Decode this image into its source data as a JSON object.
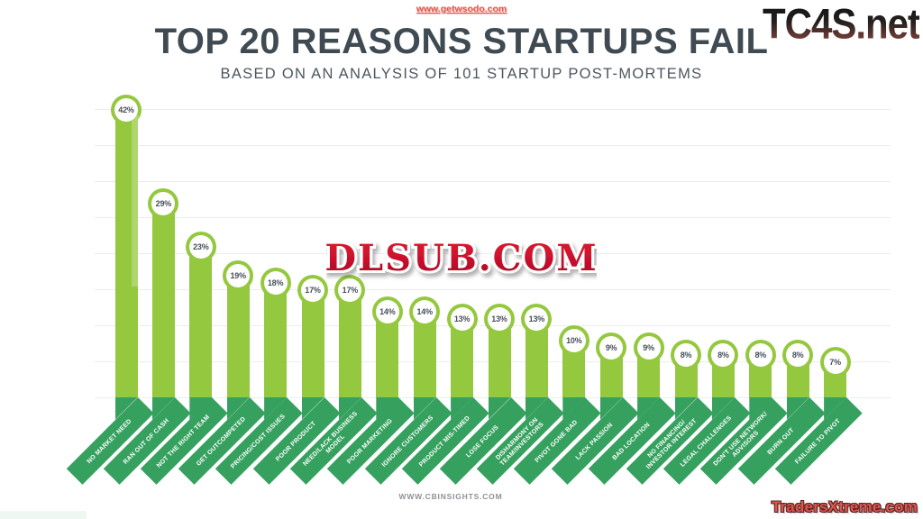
{
  "header": {
    "title": "TOP 20 REASONS STARTUPS FAIL",
    "subtitle": "BASED ON AN ANALYSIS OF 101 STARTUP POST-MORTEMS"
  },
  "footer": {
    "source": "WWW.CBINSIGHTS.COM"
  },
  "watermarks": {
    "top_center": "www.getwsodo.com",
    "top_right": "TC4S.net",
    "center_overlay": "DLSUB.COM",
    "bottom_right": "TradersXtreme.com"
  },
  "colors": {
    "bar_green": "#94c83e",
    "ribbon_green": "#36a15f",
    "title_gray": "#3f4a52",
    "gridline": "#ececec",
    "watermark_red": "#e2564f",
    "dlsub_red": "#c8102e"
  },
  "chart_data": {
    "type": "bar",
    "title": "TOP 20 REASONS STARTUPS FAIL",
    "subtitle": "BASED ON AN ANALYSIS OF 101 STARTUP POST-MORTEMS",
    "source": "WWW.CBINSIGHTS.COM",
    "unit": "%",
    "ylim": [
      0,
      45
    ],
    "gridline_step": 5,
    "grid": true,
    "legend": false,
    "categories": [
      "NO MARKET NEED",
      "RAN OUT OF CASH",
      "NOT THE RIGHT TEAM",
      "GET OUTCOMPETED",
      "PRICING/COST ISSUES",
      "POOR PRODUCT",
      "NEED/LACK BUSINESS MODEL",
      "POOR MARKETING",
      "IGNORE CUSTOMERS",
      "PRODUCT MIS-TIMED",
      "LOSE FOCUS",
      "DISHARMONY ON TEAM/INVESTORS",
      "PIVOT GONE BAD",
      "LACK PASSION",
      "BAD LOCATION",
      "NO FINANCING/INVESTOR INTEREST",
      "LEGAL CHALLENGES",
      "DON'T USE NETWORK/ADVISORS",
      "BURN OUT",
      "FAILURE TO PIVOT"
    ],
    "values": [
      42,
      29,
      23,
      19,
      18,
      17,
      17,
      14,
      14,
      13,
      13,
      13,
      10,
      9,
      9,
      8,
      8,
      8,
      8,
      7
    ],
    "display_values": [
      "42%",
      "29%",
      "23%",
      "19%",
      "18%",
      "17%",
      "17%",
      "14%",
      "14%",
      "13%",
      "13%",
      "13%",
      "10%",
      "9%",
      "9%",
      "8%",
      "8%",
      "8%",
      "8%",
      "7%"
    ],
    "label_lines": [
      [
        "NO MARKET NEED"
      ],
      [
        "RAN OUT OF CASH"
      ],
      [
        "NOT THE RIGHT TEAM"
      ],
      [
        "GET OUTCOMPETED"
      ],
      [
        "PRICING/COST ISSUES"
      ],
      [
        "POOR PRODUCT"
      ],
      [
        "NEED/LACK BUSINESS MODEL"
      ],
      [
        "POOR MARKETING"
      ],
      [
        "IGNORE CUSTOMERS"
      ],
      [
        "PRODUCT MIS-TIMED"
      ],
      [
        "LOSE FOCUS"
      ],
      [
        "DISHARMONY ON",
        "TEAM/INVESTORS"
      ],
      [
        "PIVOT GONE BAD"
      ],
      [
        "LACK PASSION"
      ],
      [
        "BAD LOCATION"
      ],
      [
        "NO FINANCING/",
        "INVESTOR INTEREST"
      ],
      [
        "LEGAL CHALLENGES"
      ],
      [
        "DON'T USE NETWORK/",
        "ADVISORS"
      ],
      [
        "BURN OUT"
      ],
      [
        "FAILURE TO PIVOT"
      ]
    ]
  }
}
